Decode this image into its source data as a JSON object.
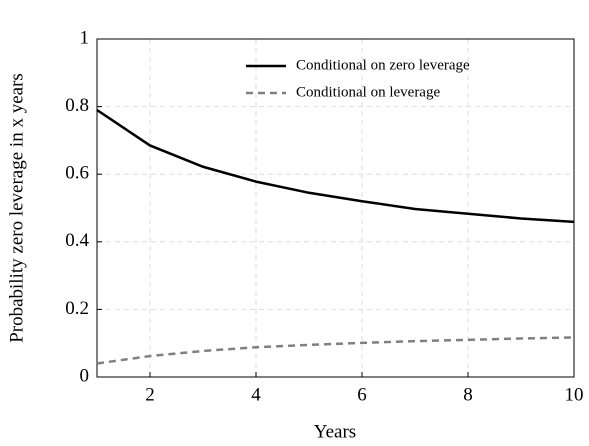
{
  "chart_data": {
    "type": "line",
    "x_label": "Years",
    "y_label": "Probability zero leverage in x years",
    "x": [
      1,
      2,
      3,
      4,
      5,
      6,
      7,
      8,
      9,
      10
    ],
    "series": [
      {
        "name": "Conditional on zero leverage",
        "color": "#000000",
        "line_style": "solid",
        "values": [
          0.79,
          0.685,
          0.622,
          0.578,
          0.545,
          0.52,
          0.497,
          0.483,
          0.469,
          0.459
        ]
      },
      {
        "name": "Conditional on leverage",
        "color": "#808080",
        "line_style": "dashed",
        "values": [
          0.04,
          0.062,
          0.077,
          0.088,
          0.095,
          0.101,
          0.106,
          0.11,
          0.114,
          0.117
        ]
      }
    ],
    "xlim": [
      1,
      10
    ],
    "xticks": [
      2,
      4,
      6,
      8,
      10
    ],
    "ylim": [
      0,
      1
    ],
    "yticks": [
      0,
      0.2,
      0.4,
      0.6,
      0.8,
      1
    ],
    "grid": true,
    "legend": "top-right"
  }
}
